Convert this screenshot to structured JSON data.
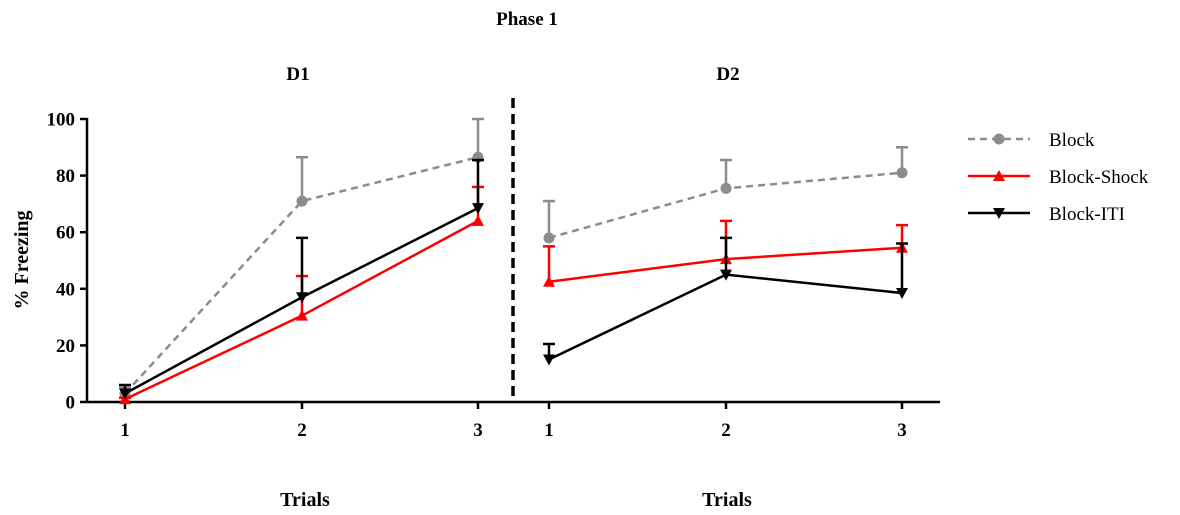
{
  "chart_data": {
    "type": "line",
    "title": "Phase 1",
    "ylabel": "% Freezing",
    "xlabel": "Trials",
    "ylim": [
      0,
      100
    ],
    "yticks": [
      0,
      20,
      40,
      60,
      80,
      100
    ],
    "legend_position": "right",
    "divider": "dashed vertical line between panels",
    "panels": [
      {
        "name": "D1",
        "categories": [
          "1",
          "2",
          "3"
        ],
        "series": [
          {
            "name": "Block",
            "values": [
              3,
              71,
              86.5
            ],
            "errors": [
              2,
              15.5,
              13.5
            ]
          },
          {
            "name": "Block-Shock",
            "values": [
              1,
              30.5,
              64
            ],
            "errors": [
              0.5,
              14,
              12
            ]
          },
          {
            "name": "Block-ITI",
            "values": [
              3,
              37,
              68.5
            ],
            "errors": [
              3,
              21,
              17
            ]
          }
        ]
      },
      {
        "name": "D2",
        "categories": [
          "1",
          "2",
          "3"
        ],
        "series": [
          {
            "name": "Block",
            "values": [
              58,
              75.5,
              81
            ],
            "errors": [
              13,
              10,
              9
            ]
          },
          {
            "name": "Block-Shock",
            "values": [
              42.5,
              50.5,
              54.5
            ],
            "errors": [
              12.5,
              13.5,
              8
            ]
          },
          {
            "name": "Block-ITI",
            "values": [
              15,
              45,
              38.5
            ],
            "errors": [
              5.5,
              13,
              17.5
            ]
          }
        ]
      }
    ],
    "series_styles": [
      {
        "name": "Block",
        "color": "#8c8c8c",
        "dash": "dashed",
        "marker": "circle"
      },
      {
        "name": "Block-Shock",
        "color": "#ff0000",
        "dash": "solid",
        "marker": "triangle-up"
      },
      {
        "name": "Block-ITI",
        "color": "#000000",
        "dash": "solid",
        "marker": "triangle-down"
      }
    ]
  }
}
